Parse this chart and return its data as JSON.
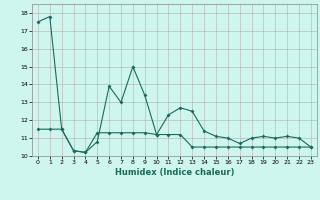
{
  "xlabel": "Humidex (Indice chaleur)",
  "background_color": "#cff5ef",
  "grid_color": "#b0b0b0",
  "line_color": "#1a6b5a",
  "xlim": [
    -0.5,
    23.5
  ],
  "ylim": [
    10.0,
    18.5
  ],
  "yticks": [
    10,
    11,
    12,
    13,
    14,
    15,
    16,
    17,
    18
  ],
  "xticks": [
    0,
    1,
    2,
    3,
    4,
    5,
    6,
    7,
    8,
    9,
    10,
    11,
    12,
    13,
    14,
    15,
    16,
    17,
    18,
    19,
    20,
    21,
    22,
    23
  ],
  "series1_x": [
    0,
    1,
    2,
    3,
    4,
    5,
    6,
    7,
    8,
    9,
    10,
    11,
    12,
    13,
    14,
    15,
    16,
    17,
    18,
    19,
    20,
    21,
    22,
    23
  ],
  "series1_y": [
    17.5,
    17.8,
    11.5,
    10.3,
    10.2,
    10.8,
    13.9,
    13.0,
    15.0,
    13.4,
    11.2,
    12.3,
    12.7,
    12.5,
    11.4,
    11.1,
    11.0,
    10.7,
    11.0,
    11.1,
    11.0,
    11.1,
    11.0,
    10.5
  ],
  "series2_x": [
    0,
    1,
    2,
    3,
    4,
    5,
    6,
    7,
    8,
    9,
    10,
    11,
    12,
    13,
    14,
    15,
    16,
    17,
    18,
    19,
    20,
    21,
    22,
    23
  ],
  "series2_y": [
    11.5,
    11.5,
    11.5,
    10.3,
    10.2,
    11.3,
    11.3,
    11.3,
    11.3,
    11.3,
    11.2,
    11.2,
    11.2,
    10.5,
    10.5,
    10.5,
    10.5,
    10.5,
    10.5,
    10.5,
    10.5,
    10.5,
    10.5,
    10.5
  ]
}
